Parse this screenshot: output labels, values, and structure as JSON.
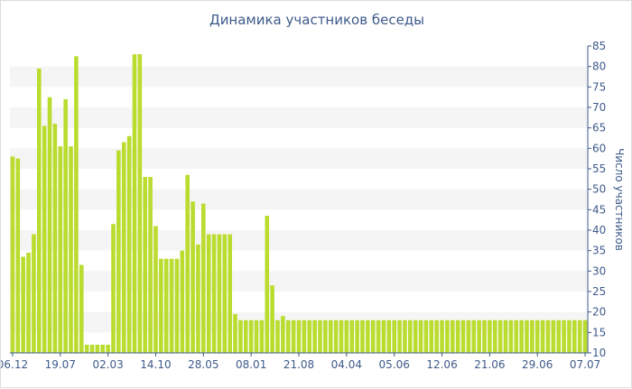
{
  "chart_data": {
    "type": "bar",
    "title": "Динамика участников беседы",
    "ylabel": "Число участников",
    "xlabel": "",
    "ylim": [
      10,
      85
    ],
    "yticks": [
      10,
      15,
      20,
      25,
      30,
      35,
      40,
      45,
      50,
      55,
      60,
      65,
      70,
      75,
      80,
      85
    ],
    "grid": "alternating horizontal bands",
    "y_axis_position": "right",
    "bar_color": "#b9dc2e",
    "band_color": "#f5f5f5",
    "axis_color": "#3e5a8a",
    "xticks": [
      {
        "label": "06.12",
        "index": 0
      },
      {
        "label": "19.07",
        "index": 9
      },
      {
        "label": "02.03",
        "index": 18
      },
      {
        "label": "14.10",
        "index": 27
      },
      {
        "label": "28.05",
        "index": 36
      },
      {
        "label": "08.01",
        "index": 45
      },
      {
        "label": "21.08",
        "index": 54
      },
      {
        "label": "04.04",
        "index": 63
      },
      {
        "label": "05.06",
        "index": 72
      },
      {
        "label": "12.06",
        "index": 81
      },
      {
        "label": "21.06",
        "index": 90
      },
      {
        "label": "29.06",
        "index": 99
      },
      {
        "label": "07.07",
        "index": 108
      }
    ],
    "values": [
      58,
      57.5,
      33.5,
      34.5,
      39,
      79.5,
      65.5,
      72.5,
      66,
      60.5,
      72,
      60.5,
      82.5,
      31.5,
      12,
      12,
      12,
      12,
      12,
      41.5,
      59.5,
      61.5,
      63,
      83,
      83,
      53,
      53,
      41,
      33,
      33,
      33,
      33,
      35,
      53.5,
      47,
      36.5,
      46.5,
      39,
      39,
      39,
      39,
      39,
      19.5,
      18,
      18,
      18,
      18,
      18,
      43.5,
      26.5,
      18,
      19,
      18,
      18,
      18,
      18,
      18,
      18,
      18,
      18,
      18,
      18,
      18,
      18,
      18,
      18,
      18,
      18,
      18,
      18,
      18,
      18,
      18,
      18,
      18,
      18,
      18,
      18,
      18,
      18,
      18,
      18,
      18,
      18,
      18,
      18,
      18,
      18,
      18,
      18,
      18,
      18,
      18,
      18,
      18,
      18,
      18,
      18,
      18,
      18,
      18,
      18,
      18,
      18,
      18,
      18,
      18,
      18,
      18
    ]
  }
}
